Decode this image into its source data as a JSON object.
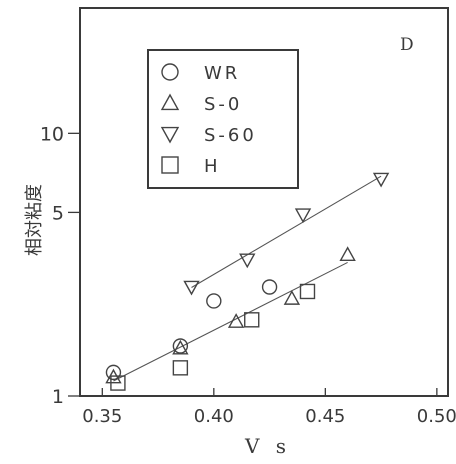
{
  "chart_data": {
    "type": "scatter",
    "panel_label": "D",
    "xlabel": "V s",
    "ylabel": "相対粘度",
    "yscale": "log",
    "xlim": [
      0.34,
      0.505
    ],
    "ylim": [
      1,
      30
    ],
    "x_ticks": [
      0.35,
      0.4,
      0.45,
      0.5
    ],
    "x_tick_labels": [
      "0.35",
      "0.40",
      "0.45",
      "0.50"
    ],
    "y_ticks": [
      1,
      5,
      10
    ],
    "y_tick_labels": [
      "1",
      "5",
      "10"
    ],
    "grid": false,
    "legend_position": "top-left",
    "series": [
      {
        "name": "WR",
        "marker": "circle",
        "points": [
          [
            0.355,
            1.23
          ],
          [
            0.385,
            1.55
          ],
          [
            0.4,
            2.3
          ],
          [
            0.425,
            2.6
          ]
        ],
        "fit_line": false
      },
      {
        "name": "S-0",
        "marker": "triangle-up",
        "points": [
          [
            0.355,
            1.18
          ],
          [
            0.385,
            1.52
          ],
          [
            0.41,
            1.92
          ],
          [
            0.435,
            2.35
          ],
          [
            0.46,
            3.45
          ]
        ],
        "fit_line": true
      },
      {
        "name": "S-60",
        "marker": "triangle-down",
        "points": [
          [
            0.39,
            2.6
          ],
          [
            0.415,
            3.3
          ],
          [
            0.44,
            4.9
          ],
          [
            0.475,
            6.7
          ]
        ],
        "fit_line": true
      },
      {
        "name": "H",
        "marker": "square",
        "points": [
          [
            0.357,
            1.12
          ],
          [
            0.385,
            1.28
          ],
          [
            0.417,
            1.95
          ],
          [
            0.442,
            2.5
          ]
        ],
        "fit_line": false
      }
    ]
  }
}
